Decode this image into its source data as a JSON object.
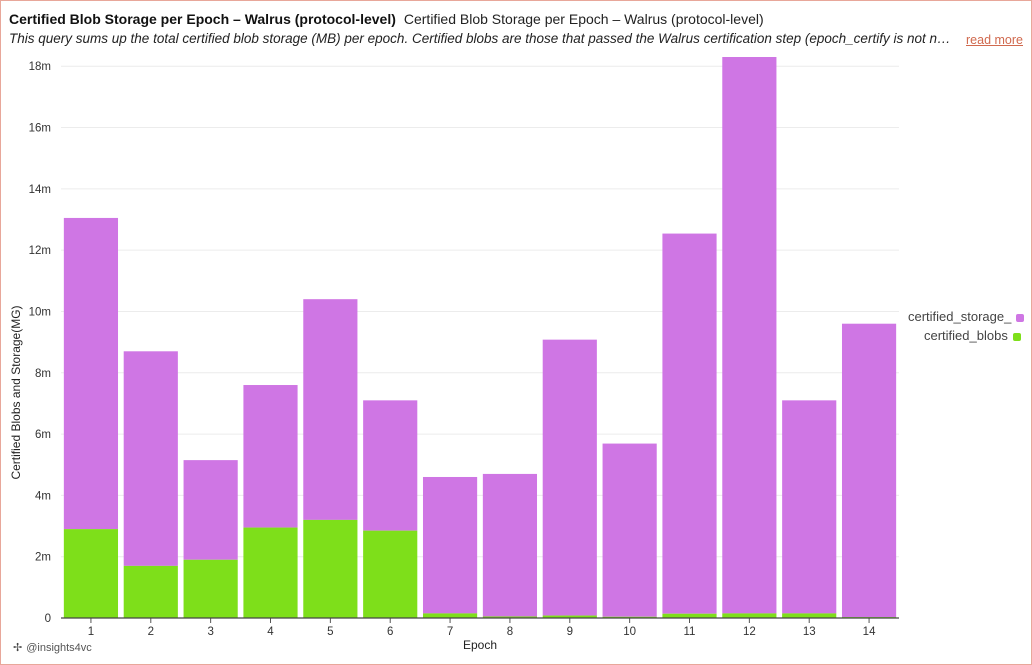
{
  "header": {
    "title": "Certified Blob Storage per Epoch – Walrus (protocol-level)",
    "subtitle": "Certified Blob Storage per Epoch – Walrus (protocol-level)",
    "description": "This query sums up the total certified blob storage (MB) per epoch. Certified blobs are those that passed the Walrus certification step (epoch_certify is not null).",
    "read_more": "read more"
  },
  "footer": {
    "handle": "@insights4vc",
    "icon": "sparkle-icon"
  },
  "colors": {
    "storage": "#cf76e4",
    "blobs": "#7edf1a",
    "border": "#e8a79a",
    "link": "#d0694e"
  },
  "chart_data": {
    "type": "bar",
    "stacked": true,
    "title": "",
    "xlabel": "Epoch",
    "ylabel": "Certified Blobs and Storage(MG)",
    "categories": [
      "1",
      "2",
      "3",
      "4",
      "5",
      "6",
      "7",
      "8",
      "9",
      "10",
      "11",
      "12",
      "13",
      "14"
    ],
    "series": [
      {
        "name": "certified_blobs",
        "values": [
          2.9,
          1.7,
          1.9,
          2.95,
          3.2,
          2.85,
          0.15,
          0.05,
          0.08,
          0.04,
          0.14,
          0.15,
          0.15,
          0.03
        ]
      },
      {
        "name": "certified_storage_",
        "values": [
          10.15,
          7.0,
          3.25,
          4.65,
          7.2,
          4.25,
          4.45,
          4.65,
          9.0,
          5.65,
          12.4,
          18.15,
          6.95,
          9.57
        ]
      }
    ],
    "ylim": [
      0,
      18.3
    ],
    "yticks": [
      0,
      2,
      4,
      6,
      8,
      10,
      12,
      14,
      16,
      18
    ],
    "ytick_labels": [
      "0",
      "2m",
      "4m",
      "6m",
      "8m",
      "10m",
      "12m",
      "14m",
      "16m",
      "18m"
    ],
    "legend": [
      "certified_storage_",
      "certified_blobs"
    ],
    "legend_position": "right",
    "grid": true
  }
}
